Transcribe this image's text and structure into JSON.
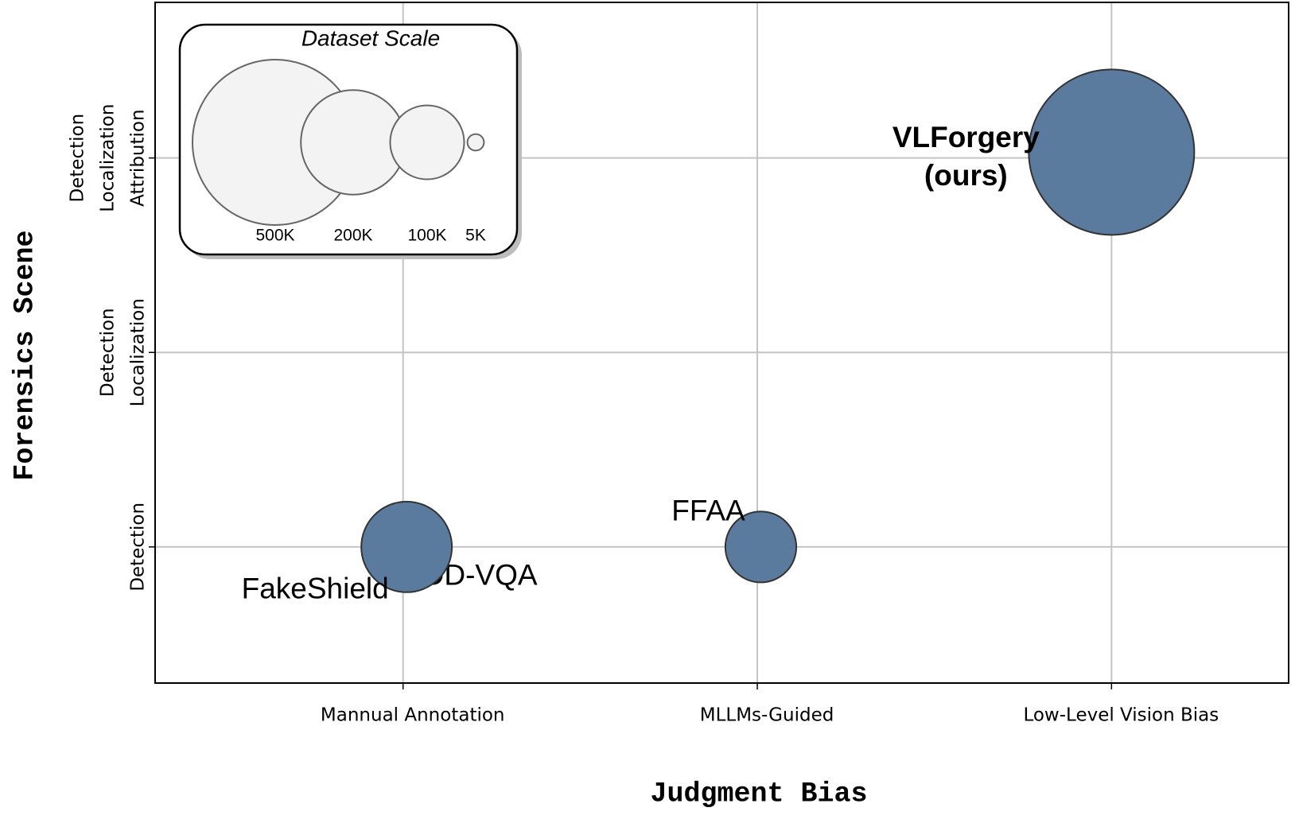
{
  "chart_data": {
    "type": "bubble",
    "xlabel": "Judgment Bias",
    "ylabel": "Forensics Scene",
    "xlim": [
      -0.7,
      2.5
    ],
    "ylim": [
      -0.7,
      2.8
    ],
    "xticks": [
      {
        "value": 0,
        "label": "Mannual Annotation"
      },
      {
        "value": 1,
        "label": "MLLMs-Guided"
      },
      {
        "value": 2,
        "label": "Low-Level Vision Bias"
      }
    ],
    "yticks": [
      {
        "value": 0,
        "label": [
          "Detection"
        ]
      },
      {
        "value": 1,
        "label": [
          "Detection",
          "Localization"
        ]
      },
      {
        "value": 2,
        "label": [
          "Detection",
          "Localization",
          "Attribution"
        ]
      }
    ],
    "grid": true,
    "color": "#5b7b9e",
    "points": [
      {
        "label": "DD-VQA",
        "x": 0.02,
        "y": 0.02,
        "size": 36000
      },
      {
        "label": "FakeShield",
        "x": 0.01,
        "y": 0,
        "size": 150000
      },
      {
        "label": "FFAA",
        "x": 1.01,
        "y": 0,
        "size": 92000
      },
      {
        "label": "VLForgery",
        "sublabel": "(ours)",
        "label_color": "#f26b6b",
        "x": 2.0,
        "y": 2.03,
        "size": 500000
      }
    ],
    "size_legend": {
      "title": "Dataset Scale",
      "values": [
        500000,
        200000,
        100000,
        5000
      ],
      "value_labels": [
        "500K",
        "200K",
        "100K",
        "5K"
      ],
      "color": "#f3f3f3"
    }
  }
}
